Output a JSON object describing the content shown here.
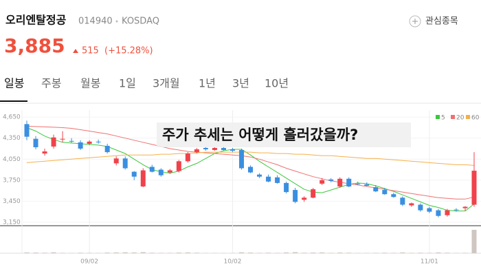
{
  "header": {
    "name": "오리엔탈정공",
    "code": "014940",
    "market": "KOSDAQ",
    "price": "3,885",
    "change": "515",
    "change_pct": "(+15.28%)",
    "watch_button": "관심종목"
  },
  "tabs": [
    "일봉",
    "주봉",
    "월봉",
    "1일",
    "3개월",
    "1년",
    "3년",
    "10년"
  ],
  "chart_data": {
    "type": "candlestick",
    "annotation": "주가 추세는 어떻게 흘러갔을까?",
    "up_color": "#f0424c",
    "down_color": "#3a8fe0",
    "volume_color": "#cfc6c2",
    "categories": [
      null,
      null,
      null,
      null,
      null,
      null,
      null,
      "09/02",
      null,
      null,
      null,
      null,
      null,
      null,
      null,
      null,
      null,
      null,
      null,
      null,
      null,
      null,
      null,
      "10/02",
      null,
      null,
      null,
      null,
      null,
      null,
      null,
      null,
      null,
      null,
      null,
      null,
      null,
      null,
      null,
      null,
      null,
      null,
      null,
      null,
      null,
      "11/01",
      null,
      null,
      null,
      null,
      null
    ],
    "open": [
      4550,
      4340,
      4130,
      4230,
      4330,
      4310,
      4290,
      4270,
      4300,
      4240,
      3990,
      4060,
      3870,
      3660,
      3940,
      3900,
      3860,
      3880,
      4020,
      4150,
      4210,
      4180,
      4210,
      4190,
      4180,
      3940,
      3830,
      3800,
      3790,
      3710,
      3610,
      3470,
      3500,
      3700,
      3760,
      3660,
      3770,
      3700,
      3690,
      3650,
      3610,
      3550,
      3500,
      3390,
      3400,
      3350,
      3320,
      3250,
      3330,
      3350,
      3400
    ],
    "high": [
      4600,
      4380,
      4200,
      4400,
      4450,
      4350,
      4320,
      4320,
      4330,
      4270,
      4090,
      4090,
      3880,
      3920,
      3970,
      3920,
      3910,
      4040,
      4150,
      4210,
      4230,
      4220,
      4230,
      4210,
      4200,
      3960,
      3850,
      3830,
      3820,
      3730,
      3640,
      3520,
      3640,
      3780,
      3780,
      3790,
      3790,
      3730,
      3720,
      3680,
      3640,
      3570,
      3520,
      3430,
      3420,
      3370,
      3340,
      3340,
      3350,
      3380,
      4150
    ],
    "low": [
      4320,
      4190,
      4100,
      4200,
      4290,
      4280,
      4180,
      4250,
      4270,
      4130,
      3960,
      3900,
      3750,
      3650,
      3860,
      3800,
      3840,
      3860,
      4000,
      4130,
      4170,
      4170,
      4170,
      4150,
      3900,
      3850,
      3780,
      3720,
      3700,
      3560,
      3420,
      3440,
      3490,
      3680,
      3720,
      3640,
      3650,
      3680,
      3660,
      3580,
      3540,
      3500,
      3380,
      3370,
      3300,
      3280,
      3220,
      3230,
      3300,
      3310,
      3370
    ],
    "close": [
      4370,
      4220,
      4160,
      4360,
      4340,
      4300,
      4200,
      4300,
      4290,
      4150,
      4060,
      3920,
      3800,
      3890,
      3870,
      3820,
      3890,
      4020,
      4130,
      4190,
      4190,
      4210,
      4180,
      4170,
      3920,
      3860,
      3800,
      3730,
      3710,
      3580,
      3440,
      3500,
      3620,
      3750,
      3740,
      3770,
      3660,
      3690,
      3670,
      3590,
      3550,
      3510,
      3400,
      3420,
      3320,
      3300,
      3240,
      3320,
      3320,
      3370,
      3885
    ],
    "volume": [
      30,
      25,
      20,
      35,
      15,
      10,
      20,
      15,
      10,
      25,
      30,
      35,
      30,
      40,
      20,
      15,
      15,
      25,
      30,
      20,
      10,
      10,
      10,
      10,
      35,
      25,
      15,
      20,
      15,
      30,
      40,
      20,
      25,
      30,
      15,
      25,
      20,
      10,
      10,
      15,
      20,
      15,
      30,
      15,
      20,
      15,
      30,
      20,
      10,
      15,
      900
    ],
    "series": [
      {
        "name": "5",
        "color": "#3cc83c",
        "values": [
          4500,
          4450,
          4380,
          4330,
          4290,
          4280,
          4270,
          4260,
          4250,
          4230,
          4180,
          4130,
          4050,
          3970,
          3900,
          3870,
          3850,
          3880,
          3940,
          3990,
          4060,
          4130,
          4170,
          4190,
          4190,
          4110,
          4020,
          3940,
          3860,
          3780,
          3700,
          3620,
          3580,
          3570,
          3610,
          3650,
          3690,
          3710,
          3700,
          3670,
          3630,
          3590,
          3540,
          3490,
          3440,
          3390,
          3360,
          3320,
          3310,
          3310,
          3410
        ]
      },
      {
        "name": "20",
        "color": "#f07070",
        "values": [
          4520,
          4515,
          4510,
          4505,
          4500,
          4490,
          4470,
          4450,
          4430,
          4410,
          4380,
          4350,
          4320,
          4290,
          4260,
          4230,
          4200,
          4180,
          4160,
          4150,
          4140,
          4130,
          4120,
          4110,
          4100,
          4080,
          4050,
          4010,
          3970,
          3920,
          3880,
          3840,
          3800,
          3770,
          3740,
          3720,
          3700,
          3680,
          3660,
          3640,
          3620,
          3600,
          3580,
          3560,
          3540,
          3520,
          3500,
          3490,
          3480,
          3480,
          3510
        ]
      },
      {
        "name": "60",
        "color": "#f5b04a",
        "values": [
          4000,
          4010,
          4020,
          4030,
          4040,
          4050,
          4060,
          4070,
          4080,
          4090,
          4100,
          4110,
          4110,
          4110,
          4110,
          4120,
          4120,
          4130,
          4130,
          4140,
          4150,
          4150,
          4150,
          4150,
          4150,
          4150,
          4140,
          4140,
          4130,
          4130,
          4120,
          4120,
          4110,
          4100,
          4100,
          4090,
          4080,
          4070,
          4060,
          4060,
          4050,
          4040,
          4030,
          4020,
          4010,
          4000,
          3990,
          3980,
          3970,
          3970,
          3960
        ]
      }
    ],
    "ylim": [
      3100,
      4750
    ],
    "yticks": [
      {
        "value": 4650,
        "label": "4,650"
      },
      {
        "value": 4350,
        "label": "4,350"
      },
      {
        "value": 4050,
        "label": "4,050"
      },
      {
        "value": 3750,
        "label": "3,750"
      },
      {
        "value": 3450,
        "label": "3,450"
      },
      {
        "value": 3150,
        "label": "3,150"
      }
    ]
  }
}
